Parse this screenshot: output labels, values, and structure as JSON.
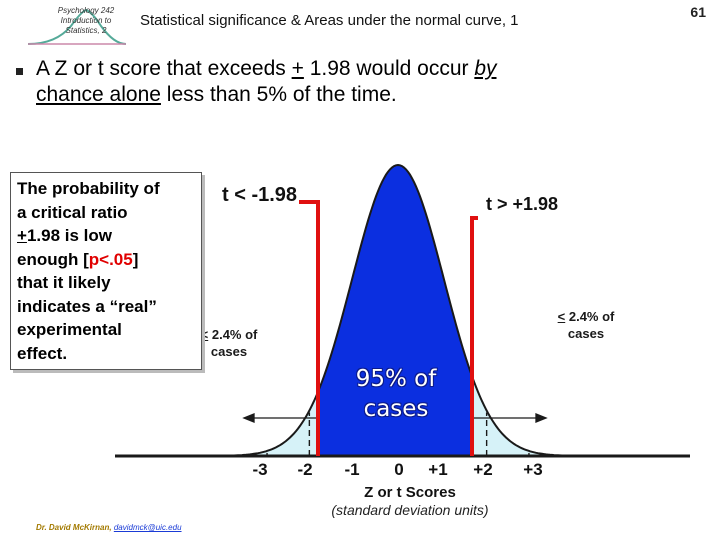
{
  "header": {
    "logo_text": "Psychology 242 Introduction to Statistics, 2",
    "slide_title": "Statistical significance & Areas under the normal curve, 1",
    "page_number": "61"
  },
  "bullet": {
    "part1": "A Z or t score that exceeds ",
    "pm": "+",
    "part2": " 1.98 would occur ",
    "by": "by",
    "part3": " ",
    "chance": "chance alone",
    "part4": " less than 5% of the time."
  },
  "callout": {
    "line1": "The probability of",
    "line2": "a critical ratio",
    "line3_pm": "+",
    "line3_rest": "1.98 is low",
    "line4_pre": "enough [",
    "line4_red": "p<.05",
    "line4_post": "]",
    "line5": "that it likely",
    "line6": "indicates a “real”",
    "line7": "experimental",
    "line8": "effect."
  },
  "labels": {
    "t_left": "t < -1.98",
    "t_right": "t > +1.98",
    "tail_left_pre": "<",
    "tail_left_rest": " 2.4% of",
    "tail_left_line2": "cases",
    "tail_right_pre": "<",
    "tail_right_rest": " 2.4% of",
    "tail_right_line2": "cases",
    "center_line1": "95% of",
    "center_line2": "cases"
  },
  "axis": {
    "ticks": [
      "-3",
      "-2",
      "-1",
      "0",
      "+1",
      "+2",
      "+3"
    ],
    "title": "Z or t Scores",
    "subtitle": "(standard deviation units)"
  },
  "footer": {
    "name": "Dr. David McKirnan,",
    "email": "davidmck@uic.edu"
  },
  "colors": {
    "curve_fill": "#0b2fe0",
    "tail_fill": "#d6f2f8",
    "critical_lines": "#e01010",
    "text": "#000000"
  }
}
